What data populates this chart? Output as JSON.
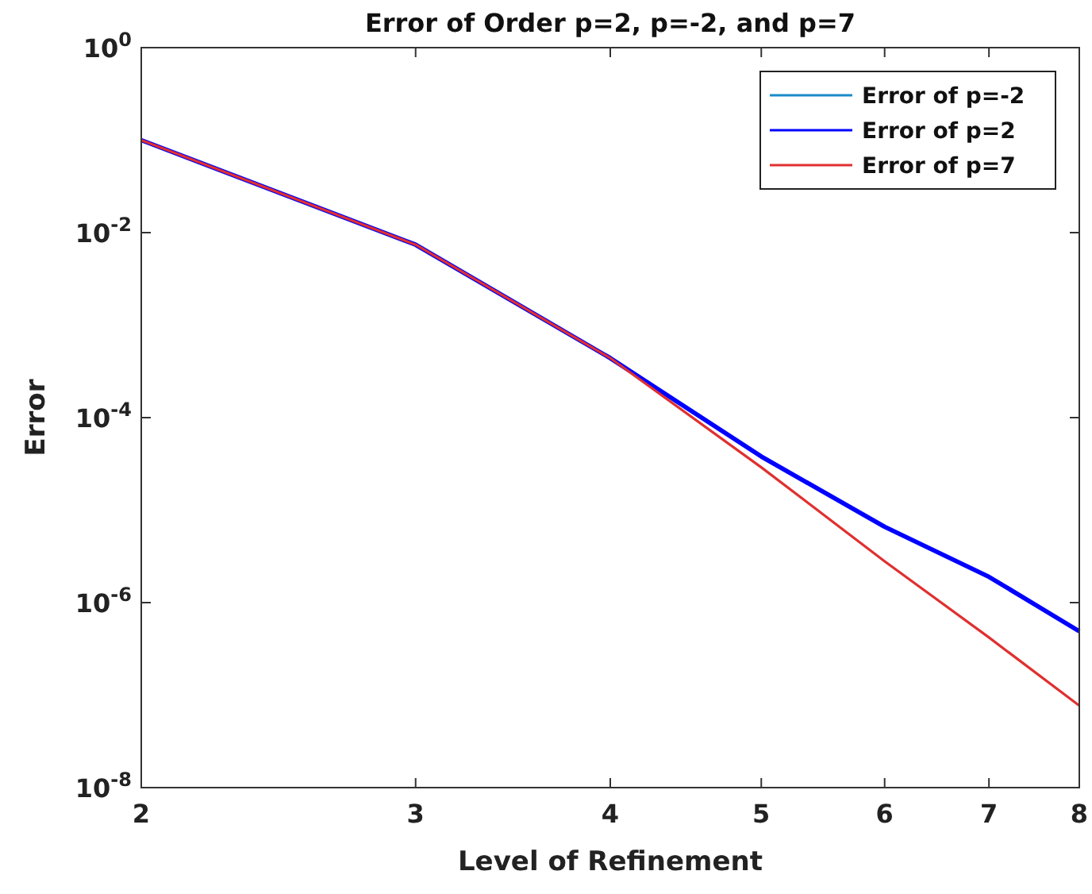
{
  "chart_data": {
    "type": "line",
    "title": "Error of Order p=2, p=-2, and p=7",
    "xlabel": "Level of Refinement",
    "ylabel": "Error",
    "x": [
      2,
      3,
      4,
      5,
      6,
      7,
      8
    ],
    "series": [
      {
        "name": "Error of p=-2",
        "color": "#1a8cc8",
        "values": [
          null,
          null,
          null,
          null,
          null,
          null,
          null
        ]
      },
      {
        "name": "Error of p=2",
        "color": "#0000ff",
        "values": [
          0.1,
          0.0074,
          0.00044,
          3.8e-05,
          6.6e-06,
          1.9e-06,
          4.9e-07
        ]
      },
      {
        "name": "Error of p=7",
        "color": "#e03030",
        "values": [
          0.1,
          0.0074,
          0.00044,
          2.9e-05,
          2.8e-06,
          4.2e-07,
          7.7e-08
        ]
      }
    ],
    "log": "xy",
    "xlim": [
      2,
      8
    ],
    "xticks": [
      2,
      3,
      4,
      5,
      6,
      7,
      8
    ],
    "ylim": [
      1e-08,
      1
    ],
    "yticks": [
      {
        "value": 1e-08,
        "label": "10$^{-8}$"
      },
      {
        "value": 1e-06,
        "label": "10$^{-6}$"
      },
      {
        "value": 0.0001,
        "label": "10$^{-4}$"
      },
      {
        "value": 0.01,
        "label": "10$^{-2}$"
      },
      {
        "value": 1,
        "label": "10$^{0}$"
      }
    ],
    "legend": "top right",
    "grid": false,
    "marker": "none",
    "line_style": "solid"
  }
}
